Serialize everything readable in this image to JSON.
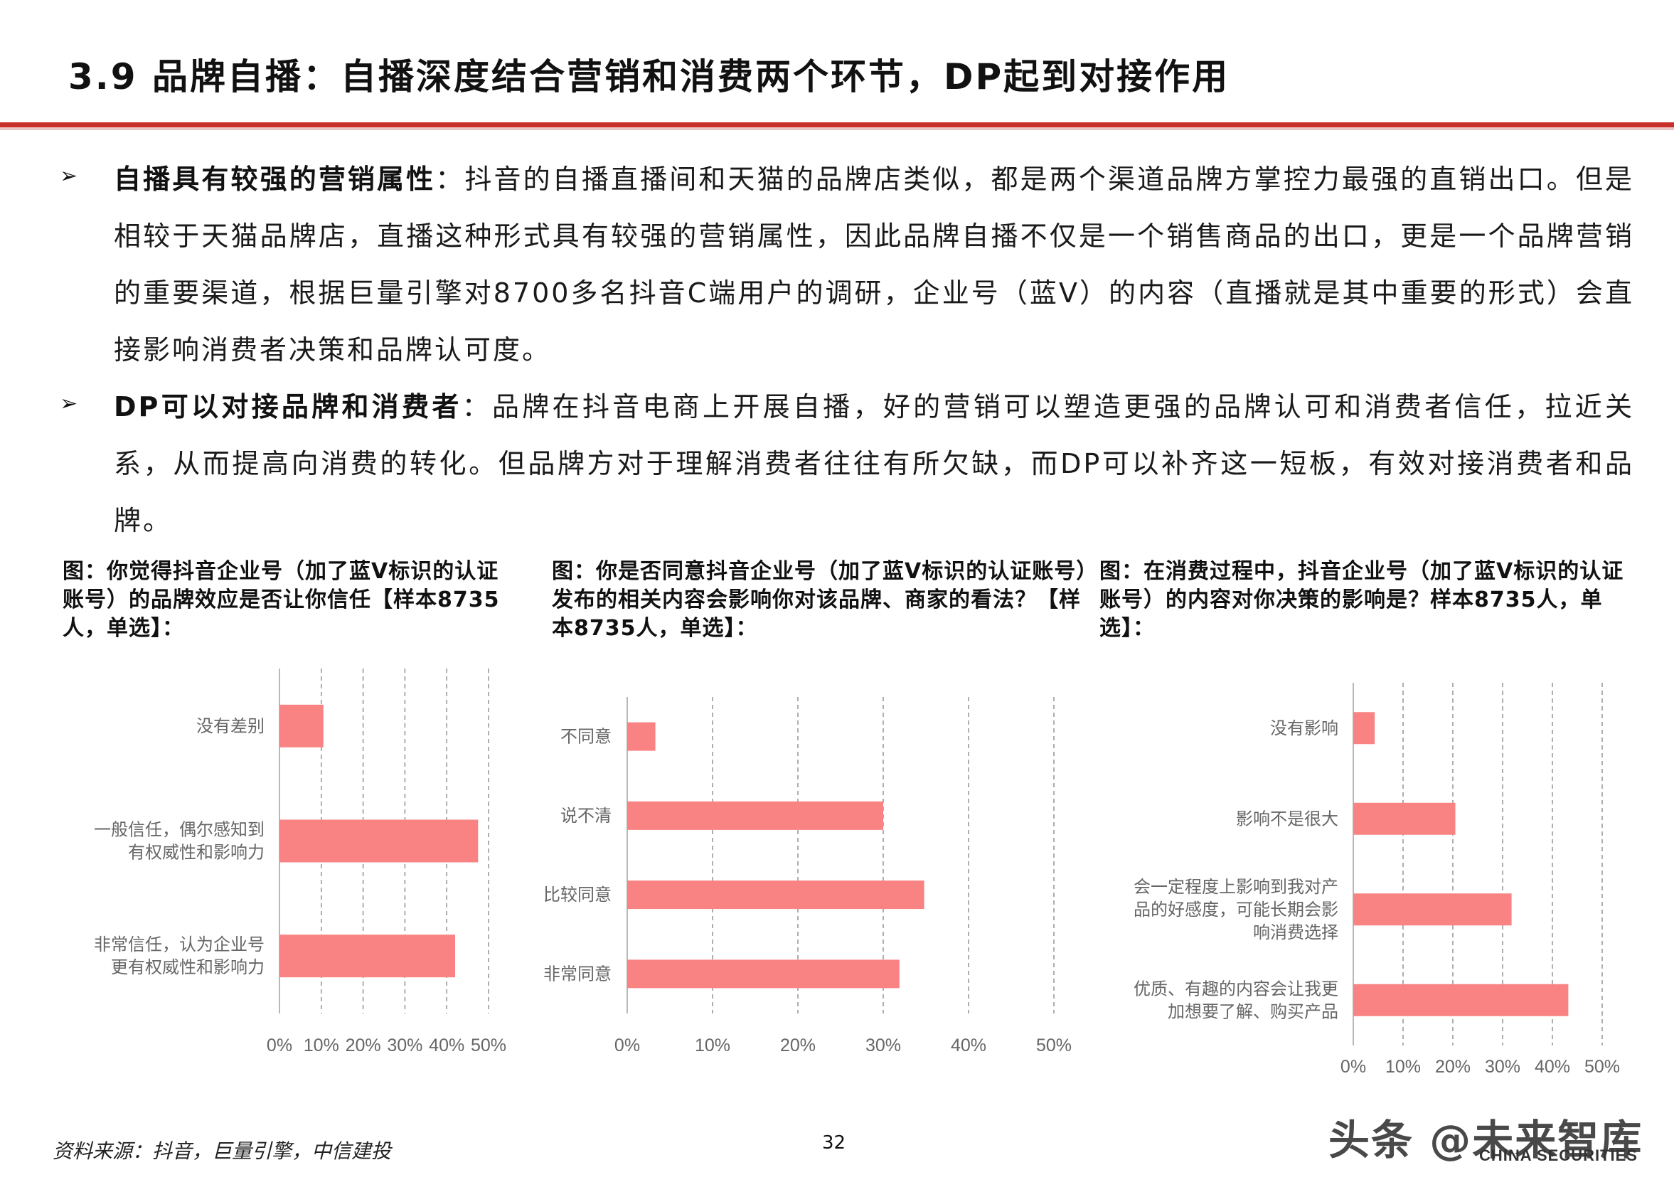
{
  "title": "3.9 品牌自播：自播深度结合营销和消费两个环节，DP起到对接作用",
  "bullets": [
    {
      "head": "自播具有较强的营销属性",
      "body": "：抖音的自播直播间和天猫的品牌店类似，都是两个渠道品牌方掌控力最强的直销出口。但是相较于天猫品牌店，直播这种形式具有较强的营销属性，因此品牌自播不仅是一个销售商品的出口，更是一个品牌营销的重要渠道，根据巨量引擎对8700多名抖音C端用户的调研，企业号（蓝V）的内容（直播就是其中重要的形式）会直接影响消费者决策和品牌认可度。"
    },
    {
      "head": "DP可以对接品牌和消费者",
      "body": "：品牌在抖音电商上开展自播，好的营销可以塑造更强的品牌认可和消费者信任，拉近关系，从而提高向消费的转化。但品牌方对于理解消费者往往有所欠缺，而DP可以补齐这一短板，有效对接消费者和品牌。"
    }
  ],
  "captions": [
    "图：你觉得抖音企业号（加了蓝V标识的认证账号）的品牌效应是否让你信任【样本8735人，单选】：",
    "图：你是否同意抖音企业号（加了蓝V标识的认证账号）发布的相关内容会影响你对该品牌、商家的看法？【样本8735人，单选】：",
    "图：在消费过程中，抖音企业号（加了蓝V标识的认证账号）的内容对你决策的影响是？样本8735人，单选】："
  ],
  "chart_data": [
    {
      "type": "bar",
      "orientation": "horizontal",
      "categories": [
        "没有差别",
        "一般信任，偶尔感知到有权威性和影响力",
        "非常信任，认为企业号更有权威性和影响力"
      ],
      "values": [
        10.5,
        47.5,
        42
      ],
      "xticks": [
        "0%",
        "10%",
        "20%",
        "30%",
        "40%",
        "50%"
      ],
      "xlim": [
        0,
        50
      ],
      "grid": "dashed vertical",
      "bar_color": "#f98282"
    },
    {
      "type": "bar",
      "orientation": "horizontal",
      "categories": [
        "不同意",
        "说不清",
        "比较同意",
        "非常同意"
      ],
      "values": [
        3.3,
        30,
        34.8,
        31.9
      ],
      "xticks": [
        "0%",
        "10%",
        "20%",
        "30%",
        "40%",
        "50%"
      ],
      "xlim": [
        0,
        50
      ],
      "grid": "dashed vertical",
      "bar_color": "#f98282"
    },
    {
      "type": "bar",
      "orientation": "horizontal",
      "categories": [
        "没有影响",
        "影响不是很大",
        "会一定程度上影响到我对产品的好感度，可能长期会影响消费选择",
        "优质、有趣的内容会让我更加想要了解、购买产品"
      ],
      "values": [
        4.3,
        20.5,
        31.8,
        43.2
      ],
      "xticks": [
        "0%",
        "10%",
        "20%",
        "30%",
        "40%",
        "50%"
      ],
      "xlim": [
        0,
        50
      ],
      "grid": "dashed vertical",
      "bar_color": "#f98282"
    }
  ],
  "footer": {
    "source": "资料来源：抖音，巨量引擎，中信建投",
    "page": "32",
    "watermark": "头条 @未来智库",
    "logo_sub": "CHINA SECURITIES"
  }
}
